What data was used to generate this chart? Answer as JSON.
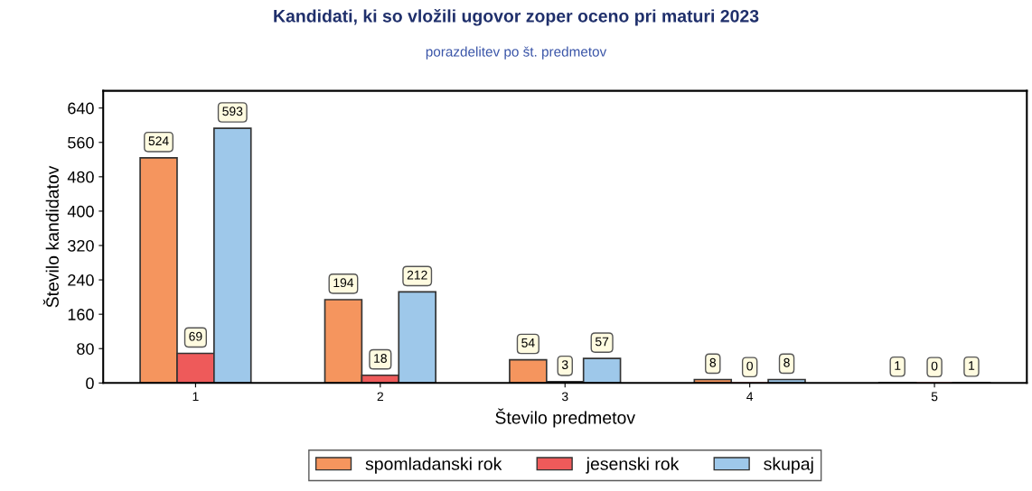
{
  "chart_data": {
    "type": "bar",
    "title": "Kandidati, ki so vložili ugovor zoper oceno pri maturi 2023",
    "subtitle": "porazdelitev po št. predmetov",
    "xlabel": "Število predmetov",
    "ylabel": "Število kandidatov",
    "categories": [
      "1",
      "2",
      "3",
      "4",
      "5"
    ],
    "series": [
      {
        "name": "spomladanski rok",
        "color": "#f5955e",
        "values": [
          524,
          194,
          54,
          8,
          1
        ]
      },
      {
        "name": "jesenski rok",
        "color": "#ee5a5a",
        "values": [
          69,
          18,
          3,
          0,
          0
        ]
      },
      {
        "name": "skupaj",
        "color": "#9ec8ea",
        "values": [
          593,
          212,
          57,
          8,
          1
        ]
      }
    ],
    "ylim": [
      0,
      680
    ],
    "yticks": [
      0,
      80,
      160,
      240,
      320,
      400,
      480,
      560,
      640
    ],
    "grid": false,
    "legend": "bottom",
    "data_labels": true
  }
}
